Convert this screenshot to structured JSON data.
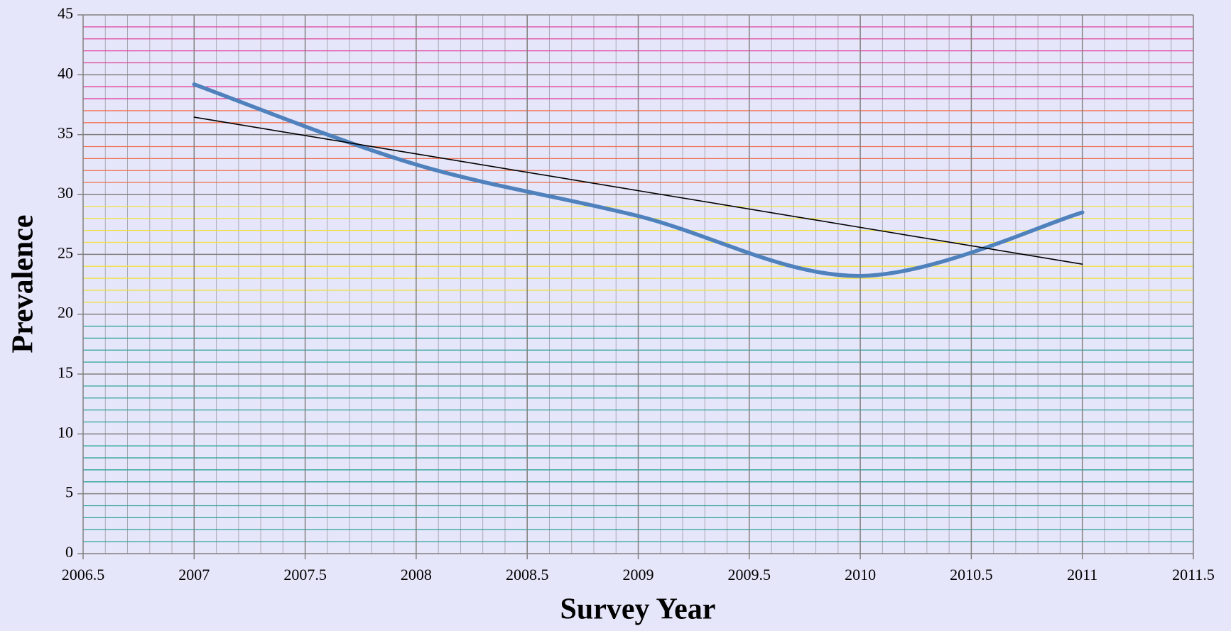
{
  "chart_data": {
    "type": "line",
    "x_label": "Survey Year",
    "y_label": "Prevalence",
    "x": [
      2007,
      2008,
      2009,
      2010,
      2011
    ],
    "series": [
      {
        "color": "#4f81bd",
        "smooth": true,
        "values": [
          39.2,
          32.5,
          28.2,
          23.2,
          28.5
        ]
      },
      {
        "color": "#000000",
        "smooth": false,
        "values": [
          36.46,
          33.39,
          30.32,
          27.25,
          24.18
        ]
      }
    ],
    "xlim": [
      2006.5,
      2011.5
    ],
    "xticks": [
      2006.5,
      2007,
      2007.5,
      2008,
      2008.5,
      2009,
      2009.5,
      2010,
      2010.5,
      2011,
      2011.5
    ],
    "ylim": [
      0,
      45
    ],
    "yticks": [
      0,
      5,
      10,
      15,
      20,
      25,
      30,
      35,
      40,
      45
    ],
    "grid": true,
    "minor_grid": true
  }
}
